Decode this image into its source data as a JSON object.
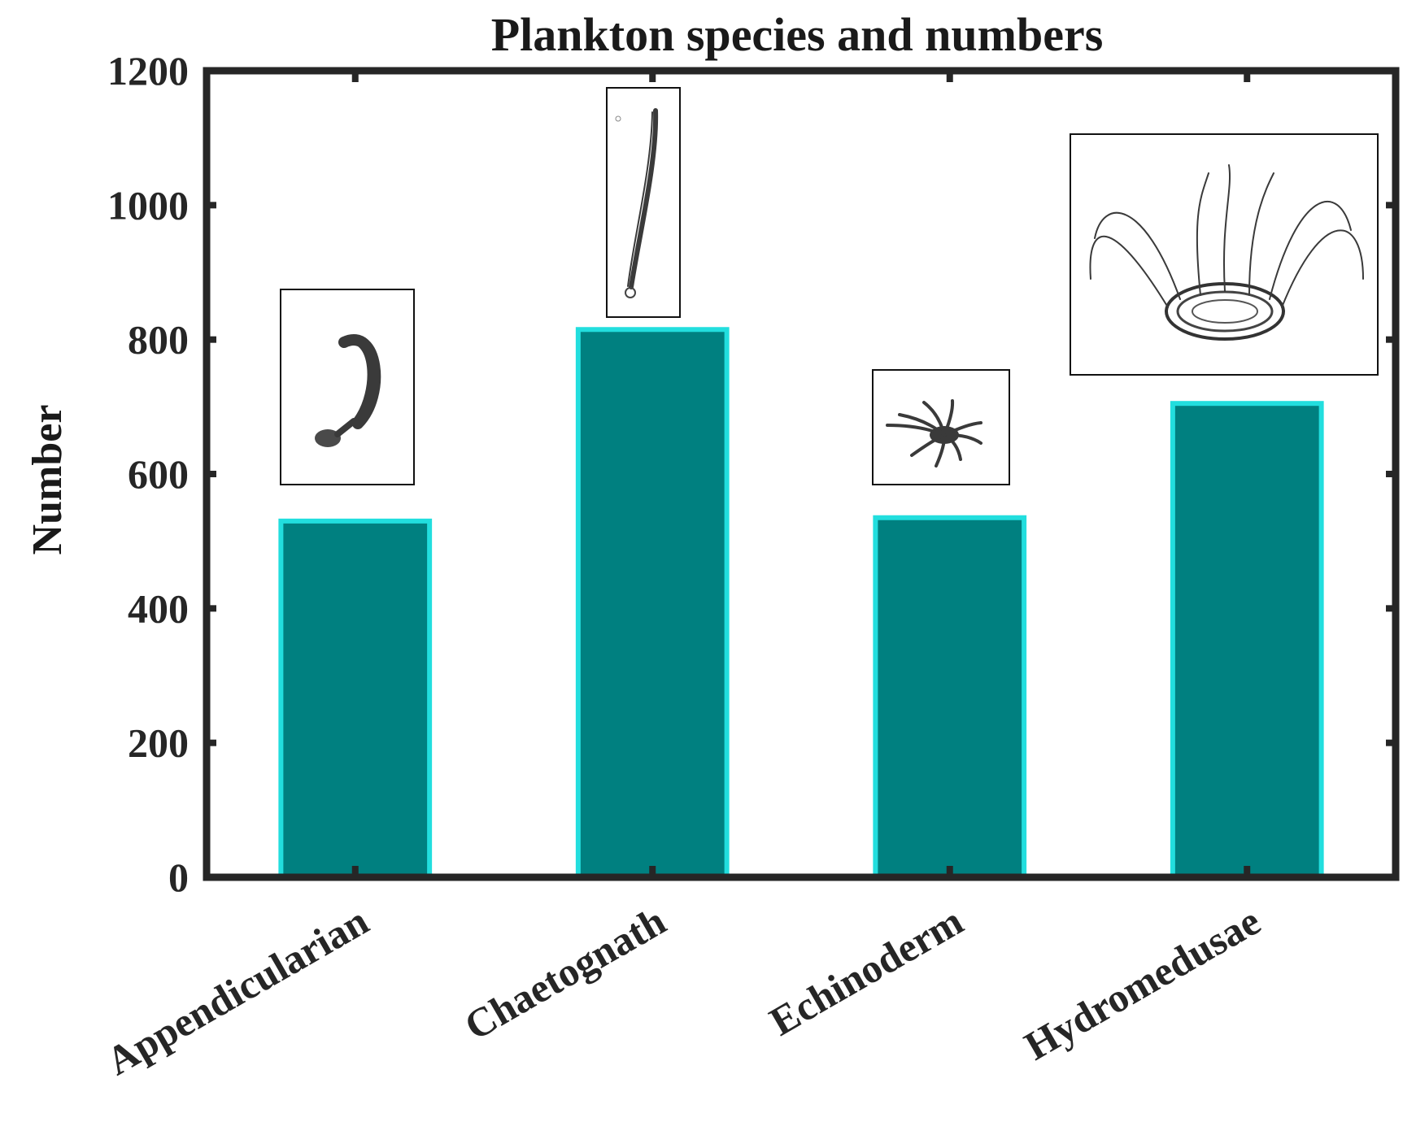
{
  "chart_data": {
    "type": "bar",
    "title": "Plankton species and numbers",
    "xlabel": "",
    "ylabel": "Number",
    "categories": [
      "Appendicularian",
      "Chaetognath",
      "Echinoderm",
      "Hydromedusae"
    ],
    "values": [
      530,
      815,
      535,
      705
    ],
    "ylim": [
      0,
      1200
    ],
    "yticks": [
      0,
      200,
      400,
      600,
      800,
      1000,
      1200
    ],
    "grid": false,
    "legend": "none",
    "bar_fill": "#008080",
    "bar_edge": "#22dede",
    "axis_color": "#262626",
    "insets": [
      {
        "category": "Appendicularian",
        "icon": "appendicularian-photo-icon"
      },
      {
        "category": "Chaetognath",
        "icon": "chaetognath-photo-icon"
      },
      {
        "category": "Echinoderm",
        "icon": "echinoderm-photo-icon"
      },
      {
        "category": "Hydromedusae",
        "icon": "hydromedusae-photo-icon"
      }
    ]
  }
}
